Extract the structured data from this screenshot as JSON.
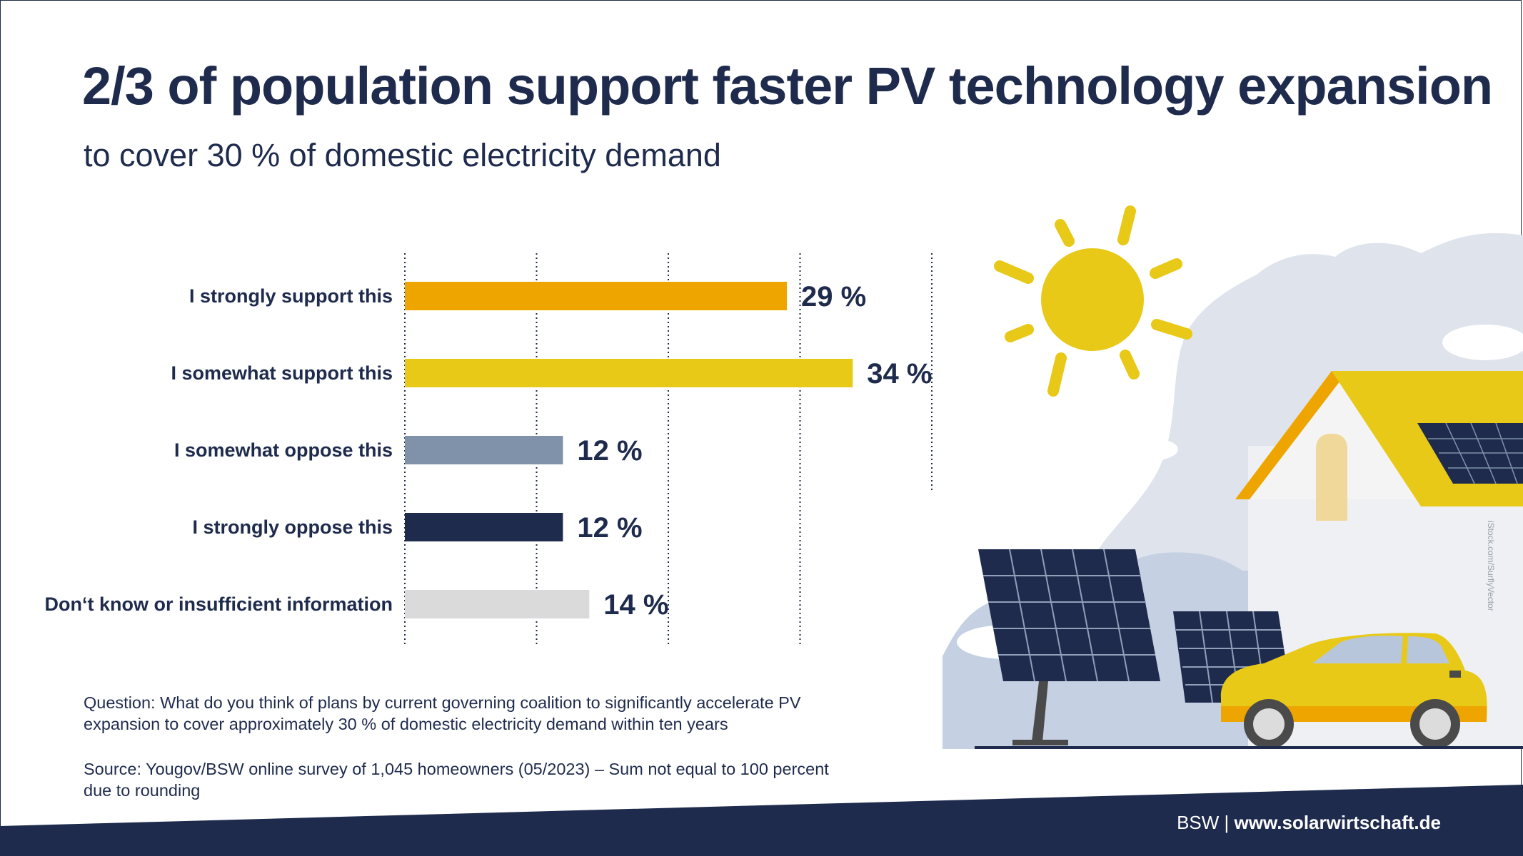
{
  "title": "2/3 of population support faster PV technology expansion",
  "subtitle": "to cover 30 % of domestic electricity demand",
  "chart_data": {
    "type": "bar",
    "orientation": "horizontal",
    "categories": [
      "I strongly support this",
      "I somewhat support this",
      "I somewhat oppose this",
      "I strongly oppose this",
      "Don‘t know or insufficient information"
    ],
    "values": [
      29,
      34,
      12,
      12,
      14
    ],
    "value_labels": [
      "29 %",
      "34 %",
      "12 %",
      "12 %",
      "14 %"
    ],
    "colors": [
      "#eea500",
      "#e8c918",
      "#7f92aa",
      "#1f2b4d",
      "#dadada"
    ],
    "xlim": [
      0,
      40
    ],
    "gridlines": [
      0,
      10,
      20,
      30,
      40
    ],
    "grid": "dotted vertical",
    "legend": "none"
  },
  "question": "Question: What do you think of plans by current governing coalition to significantly accelerate PV expansion to cover approximately 30 % of domestic electricity demand within ten years",
  "source": "Source: Yougov/BSW online survey of 1,045 homeowners (05/2023) – Sum not equal to 100 percent due to rounding",
  "footer": {
    "org": "BSW",
    "separator": "|",
    "url": "www.solarwirtschaft.de"
  },
  "image_credit": "iStock.com/SurflyVector",
  "colors": {
    "navy": "#1f2b4d",
    "orange": "#eea500",
    "yellow": "#e8c918",
    "grey_blue": "#7f92aa",
    "light_grey": "#dadada"
  }
}
